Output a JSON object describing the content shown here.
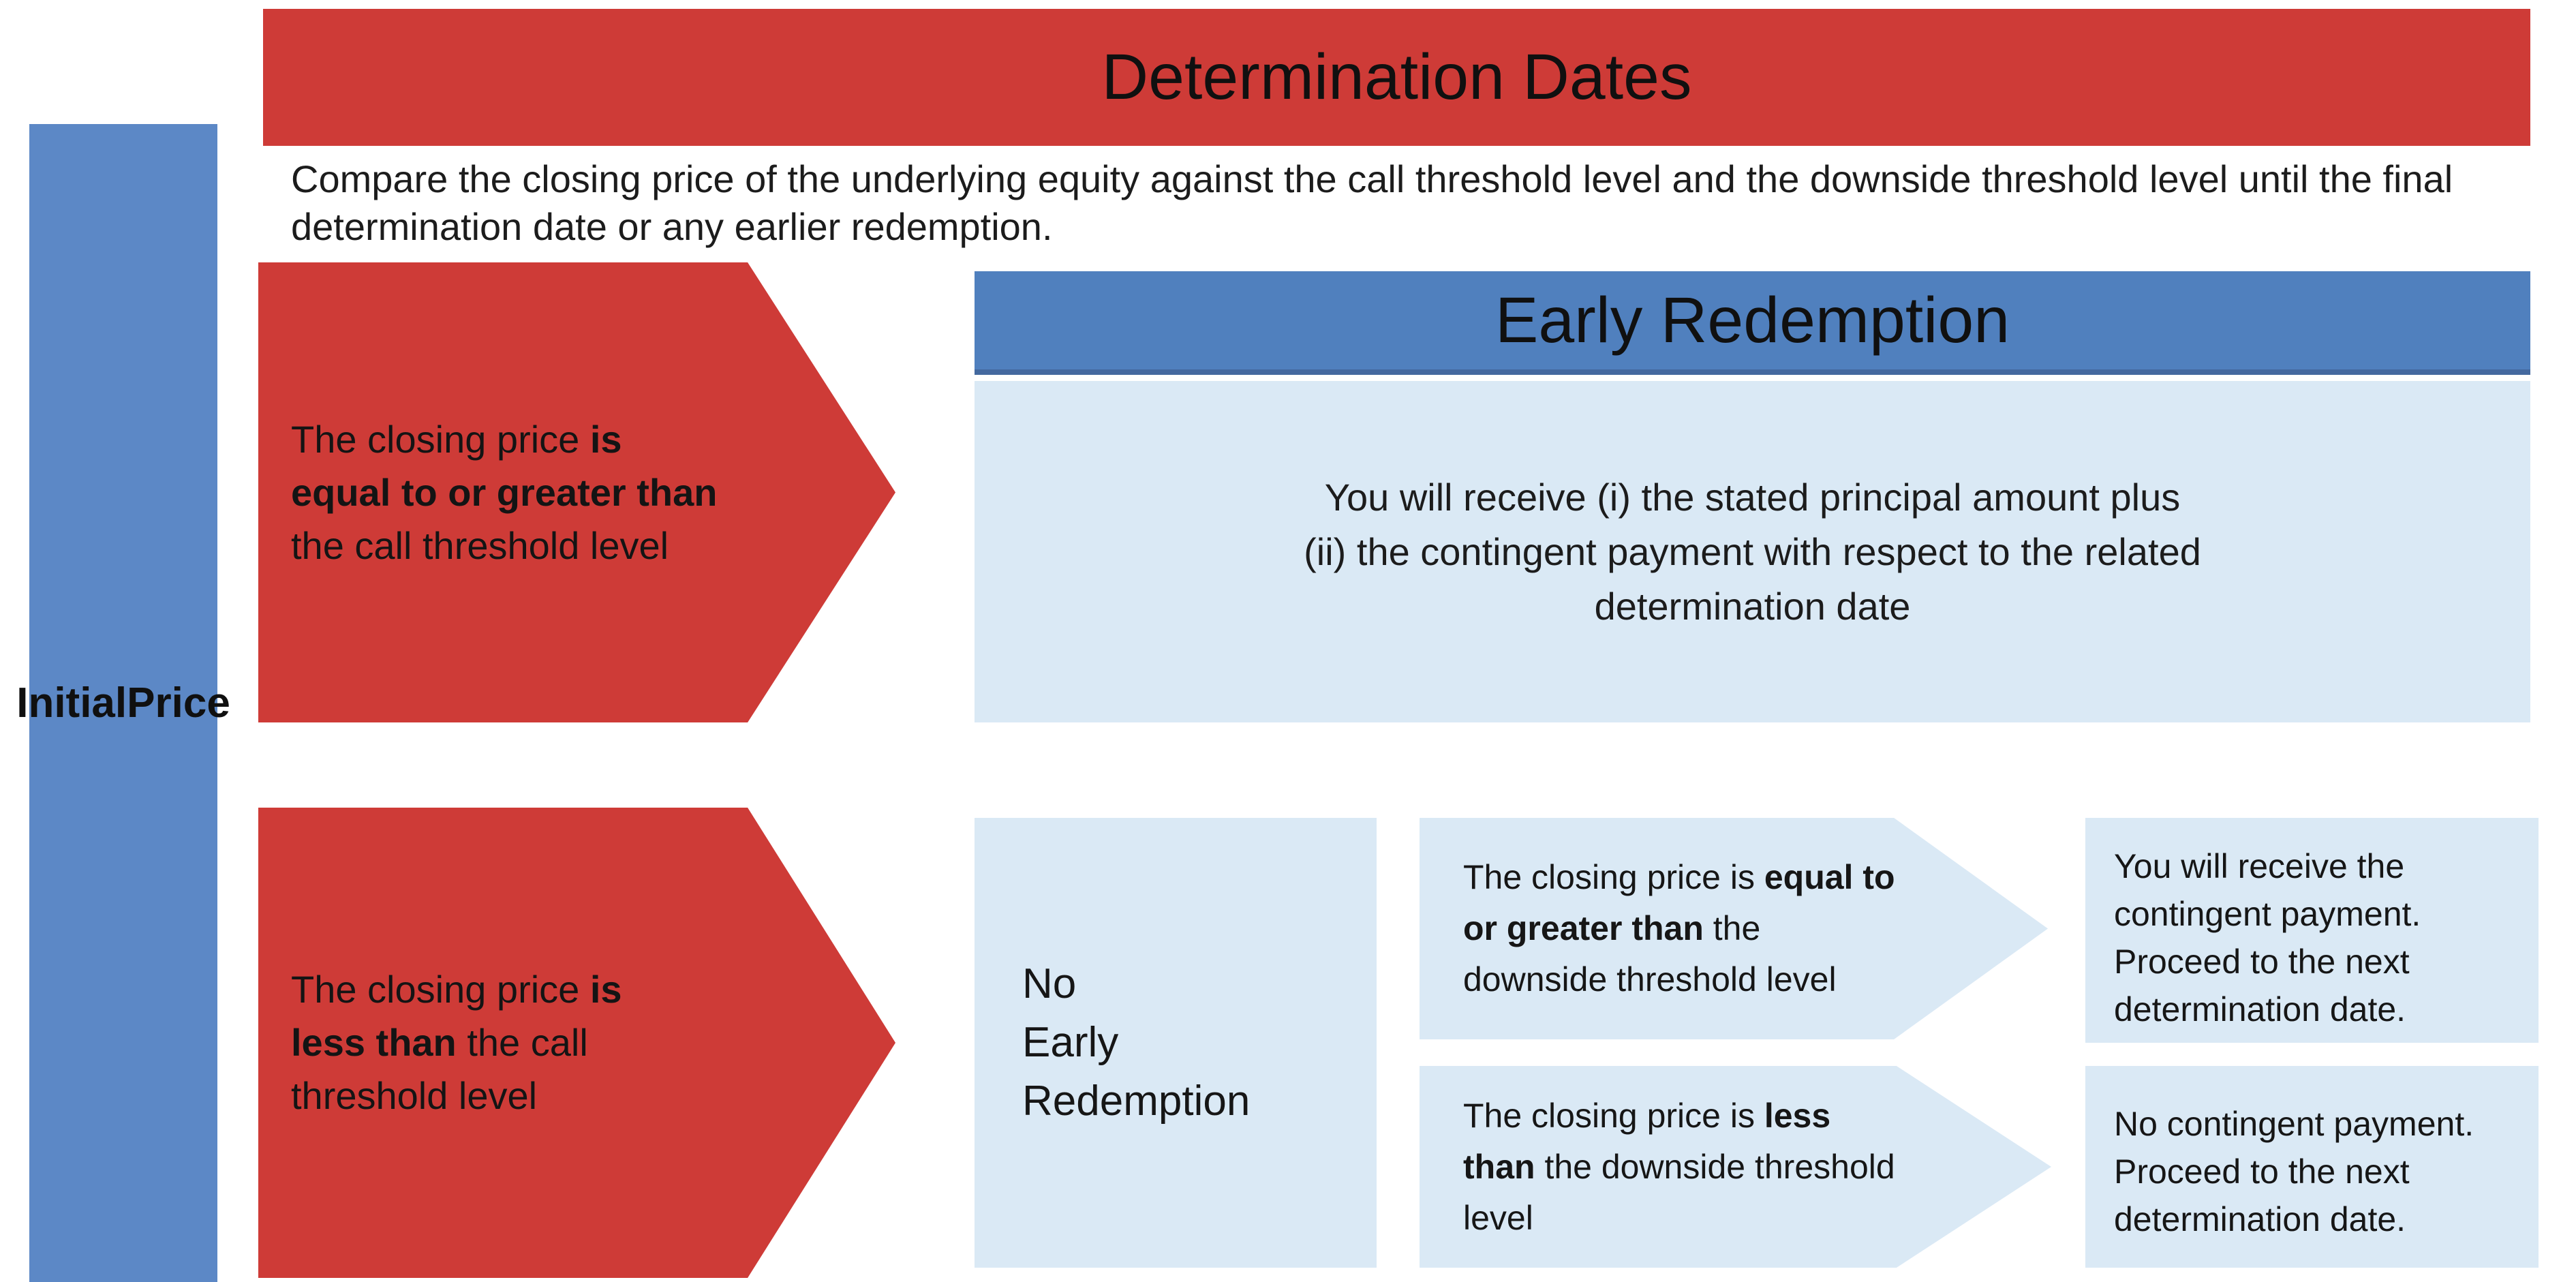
{
  "colors": {
    "red": "#CE3B37",
    "bar_blue": "#5C88C6",
    "banner_blue": "#5080BE",
    "banner_edge": "#44699F",
    "light_blue": "#DAE9F5"
  },
  "left_bar": {
    "label_lines": [
      "Initial",
      "Price"
    ]
  },
  "header": {
    "title": "Determination Dates"
  },
  "description": {
    "lines": [
      "Compare the closing price of the underlying equity against the call threshold level and the downside threshold level until the final",
      "determination date or any earlier redemption."
    ]
  },
  "call_above": {
    "condition_lines": [
      [
        {
          "t": "The closing price ",
          "b": false
        },
        {
          "t": "is",
          "b": true
        }
      ],
      [
        {
          "t": "equal to or greater than",
          "b": true
        }
      ],
      [
        {
          "t": "the call threshold level",
          "b": false
        }
      ]
    ]
  },
  "early_redemption": {
    "banner_title": "Early Redemption",
    "outcome_lines": [
      "You will receive (i) the stated principal amount plus",
      "(ii) the contingent payment with respect to the related",
      "determination date"
    ]
  },
  "call_below": {
    "condition_lines": [
      [
        {
          "t": "The closing price ",
          "b": false
        },
        {
          "t": "is",
          "b": true
        }
      ],
      [
        {
          "t": "less than",
          "b": true
        },
        {
          "t": " the call",
          "b": false
        }
      ],
      [
        {
          "t": "threshold level",
          "b": false
        }
      ]
    ]
  },
  "no_early_redemption": {
    "lines": [
      "No",
      "Early",
      "Redemption"
    ]
  },
  "downside_above": {
    "condition_lines": [
      [
        {
          "t": "The closing price is ",
          "b": false
        },
        {
          "t": "equal to",
          "b": true
        }
      ],
      [
        {
          "t": "or greater than",
          "b": true
        },
        {
          "t": " the",
          "b": false
        }
      ],
      [
        {
          "t": "downside threshold level",
          "b": false
        }
      ]
    ],
    "outcome_lines": [
      "You will receive the",
      "contingent payment.",
      "Proceed to the next",
      "determination date."
    ]
  },
  "downside_below": {
    "condition_lines": [
      [
        {
          "t": "The closing price is ",
          "b": false
        },
        {
          "t": "less",
          "b": true
        }
      ],
      [
        {
          "t": "than",
          "b": true
        },
        {
          "t": " the downside threshold",
          "b": false
        }
      ],
      [
        {
          "t": "level",
          "b": false
        }
      ]
    ],
    "outcome_lines": [
      "No contingent payment.",
      "Proceed to the next",
      "determination date."
    ]
  }
}
